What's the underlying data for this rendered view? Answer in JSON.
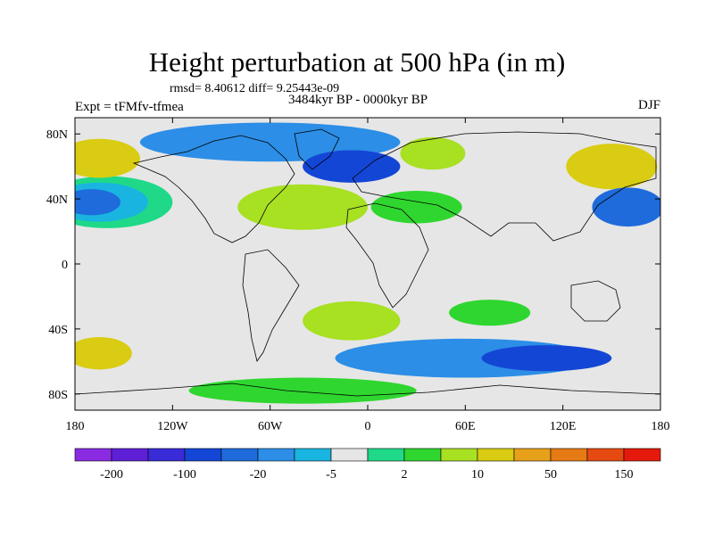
{
  "title": "Height perturbation at 500 hPa (in m)",
  "stats": "rmsd= 8.40612 diff= 9.25443e-09",
  "experiment": "Expt = tFMfv-tfmea",
  "period": "3484kyr BP - 0000kyr BP",
  "season": "DJF",
  "map": {
    "lat_ticks": [
      "80N",
      "40N",
      "0",
      "40S",
      "80S"
    ],
    "lon_ticks": [
      "180",
      "120W",
      "60W",
      "0",
      "60E",
      "120E",
      "180"
    ]
  },
  "colorbar": {
    "colors": [
      "#8a2be2",
      "#5e1fd6",
      "#3a2bd8",
      "#1446d6",
      "#1f6bdb",
      "#2c8ee6",
      "#19b5e0",
      "#e6e6e6",
      "#1fd988",
      "#2fd62f",
      "#a8e022",
      "#d9cc12",
      "#e6a01a",
      "#e67a14",
      "#e64a12",
      "#e61a0c"
    ],
    "labels": [
      "-200",
      "-100",
      "-20",
      "-5",
      "2",
      "10",
      "50",
      "150"
    ]
  },
  "fields": {
    "background": "#e6e6e6",
    "regions": [
      {
        "name": "north-pacific-negative-outer",
        "lon": -160,
        "lat": 38,
        "rlon": 40,
        "rlat": 16,
        "color": "#1fd988"
      },
      {
        "name": "north-pacific-negative",
        "lon": -165,
        "lat": 38,
        "rlon": 30,
        "rlat": 12,
        "color": "#19b5e0"
      },
      {
        "name": "north-pacific-negative-core",
        "lon": -170,
        "lat": 38,
        "rlon": 18,
        "rlat": 8,
        "color": "#1f6bdb"
      },
      {
        "name": "alaska-positive",
        "lon": -165,
        "lat": 65,
        "rlon": 25,
        "rlat": 12,
        "color": "#d9cc12"
      },
      {
        "name": "arctic-negative",
        "lon": -60,
        "lat": 75,
        "rlon": 80,
        "rlat": 12,
        "color": "#2c8ee6"
      },
      {
        "name": "greenland-negative-core",
        "lon": -10,
        "lat": 60,
        "rlon": 30,
        "rlat": 10,
        "color": "#1446d6"
      },
      {
        "name": "atlantic-positive",
        "lon": -40,
        "lat": 35,
        "rlon": 40,
        "rlat": 14,
        "color": "#a8e022"
      },
      {
        "name": "siberia-positive",
        "lon": 40,
        "lat": 68,
        "rlon": 20,
        "rlat": 10,
        "color": "#a8e022"
      },
      {
        "name": "east-asia-positive",
        "lon": 150,
        "lat": 60,
        "rlon": 28,
        "rlat": 14,
        "color": "#d9cc12"
      },
      {
        "name": "west-pacific-negative",
        "lon": 160,
        "lat": 35,
        "rlon": 22,
        "rlat": 12,
        "color": "#1f6bdb"
      },
      {
        "name": "mediterranean-positive",
        "lon": 30,
        "lat": 35,
        "rlon": 28,
        "rlat": 10,
        "color": "#2fd62f"
      },
      {
        "name": "south-pacific-positive",
        "lon": -165,
        "lat": -55,
        "rlon": 20,
        "rlat": 10,
        "color": "#d9cc12"
      },
      {
        "name": "south-atlantic-positive",
        "lon": -10,
        "lat": -35,
        "rlon": 30,
        "rlat": 12,
        "color": "#a8e022"
      },
      {
        "name": "southern-ocean-negative",
        "lon": 60,
        "lat": -58,
        "rlon": 80,
        "rlat": 12,
        "color": "#2c8ee6"
      },
      {
        "name": "southern-ocean-negative-core",
        "lon": 110,
        "lat": -58,
        "rlon": 40,
        "rlat": 8,
        "color": "#1446d6"
      },
      {
        "name": "antarctic-positive",
        "lon": -40,
        "lat": -78,
        "rlon": 70,
        "rlat": 8,
        "color": "#2fd62f"
      },
      {
        "name": "south-indian-positive",
        "lon": 75,
        "lat": -30,
        "rlon": 25,
        "rlat": 8,
        "color": "#2fd62f"
      }
    ]
  }
}
